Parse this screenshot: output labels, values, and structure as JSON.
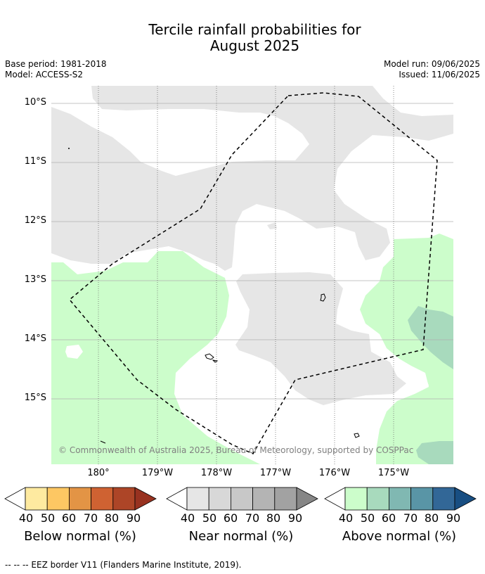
{
  "title_line1": "Tercile rainfall probabilities for",
  "title_line2": "August 2025",
  "base_period": "Base period: 1981-2018",
  "model": "Model: ACCESS-S2",
  "model_run": "Model run: 09/06/2025",
  "issued": "Issued: 11/06/2025",
  "attribution": "© Commonwealth of Australia 2025, Bureau of Meteorology, supported by COSPPac",
  "lat_labels": [
    "10°S",
    "11°S",
    "12°S",
    "13°S",
    "14°S",
    "15°S"
  ],
  "lon_labels": [
    "180°",
    "179°W",
    "178°W",
    "177°W",
    "176°W",
    "175°W"
  ],
  "colorbars": [
    {
      "title": "Below normal (%)",
      "ticks": [
        "40",
        "50",
        "60",
        "70",
        "80",
        "90"
      ],
      "colors": [
        "#ffffff",
        "#feeaa0",
        "#fdc763",
        "#e39445",
        "#cf6232",
        "#ad4527",
        "#983220"
      ]
    },
    {
      "title": "Near normal (%)",
      "ticks": [
        "40",
        "50",
        "60",
        "70",
        "80",
        "90"
      ],
      "colors": [
        "#ffffff",
        "#e6e6e6",
        "#d8d8d8",
        "#c8c8c8",
        "#b4b4b4",
        "#a2a2a2",
        "#868686"
      ]
    },
    {
      "title": "Above normal (%)",
      "ticks": [
        "40",
        "50",
        "60",
        "70",
        "80",
        "90"
      ],
      "colors": [
        "#ffffff",
        "#ccfdcb",
        "#a8dabd",
        "#80b8b2",
        "#5995a6",
        "#326797",
        "#184e82"
      ]
    }
  ],
  "footnote": "-- -- -- EEZ border V11 (Flanders Marine Institute, 2019)."
}
